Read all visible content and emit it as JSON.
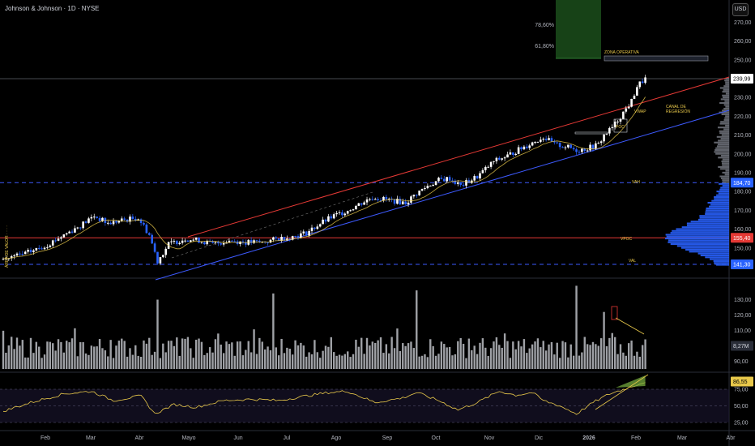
{
  "header": {
    "title": "Johnson & Johnson · 1D · NYSE",
    "currency_button": "USD"
  },
  "colors": {
    "up": "#ffffff",
    "down": "#2962ff",
    "resistance": "#e53935",
    "support": "#3d5afe",
    "level_line": "#3d5afe",
    "poc_line": "#e53935",
    "annotation": "#e8c84a",
    "volume_bar": "#b0b3b8",
    "profile": "#2962ff",
    "rsi_line": "#e8c84a",
    "rsi_fill": "#7cb342",
    "target_zone": "#1b4d1b"
  },
  "fib_labels": [
    {
      "text": "78,60%"
    },
    {
      "text": "61,80%"
    }
  ],
  "annotations": {
    "zona_operativa": "ZONA OPERATIVA",
    "canal_line1": "CANAL DE",
    "canal_line2": "REGRESIÓN",
    "vwap": "VWAP",
    "poc": "POC",
    "vah": "VAH",
    "vpoc": "VPOC",
    "val": "VAL",
    "area_valor": "ÁREA DE VALOR · · · ·"
  },
  "price_axis": {
    "ticks": [
      "270,00",
      "260,00",
      "250,00",
      "240,00",
      "230,00",
      "220,00",
      "210,00",
      "200,00",
      "190,00",
      "180,00",
      "170,00",
      "160,00",
      "150,00"
    ]
  },
  "price_badges": [
    {
      "text": "239,99",
      "kind": "last"
    },
    {
      "text": "184,70",
      "kind": "level"
    },
    {
      "text": "155,40",
      "kind": "poc"
    },
    {
      "text": "141,30",
      "kind": "level"
    }
  ],
  "volume_axis": {
    "ticks": [
      "130,00",
      "120,00",
      "110,00",
      "90,00"
    ],
    "badge": "8,27M"
  },
  "rsi_axis": {
    "ticks": [
      "75,00",
      "50,00",
      "25,00"
    ],
    "badge": "86,55"
  },
  "time_axis": {
    "labels": [
      "Feb",
      "Mar",
      "Abr",
      "Mayo",
      "Jun",
      "Jul",
      "Ago",
      "Sep",
      "Oct",
      "Nov",
      "Dic",
      "2026",
      "Feb",
      "Mar",
      "Abr"
    ]
  },
  "chart_data": {
    "type": "candlestick",
    "price_keyframes": [
      [
        0,
        144
      ],
      [
        8,
        147
      ],
      [
        15,
        151
      ],
      [
        22,
        157
      ],
      [
        28,
        162
      ],
      [
        33,
        167
      ],
      [
        38,
        163
      ],
      [
        44,
        165
      ],
      [
        49,
        166
      ],
      [
        53,
        157
      ],
      [
        56,
        143
      ],
      [
        60,
        152
      ],
      [
        66,
        155
      ],
      [
        71,
        154
      ],
      [
        76,
        152
      ],
      [
        82,
        154
      ],
      [
        88,
        153
      ],
      [
        94,
        153
      ],
      [
        100,
        155
      ],
      [
        105,
        156
      ],
      [
        110,
        158
      ],
      [
        115,
        163
      ],
      [
        120,
        167
      ],
      [
        125,
        170
      ],
      [
        130,
        174
      ],
      [
        134,
        177
      ],
      [
        138,
        176
      ],
      [
        142,
        175
      ],
      [
        146,
        174
      ],
      [
        150,
        179
      ],
      [
        154,
        183
      ],
      [
        158,
        186
      ],
      [
        162,
        187
      ],
      [
        166,
        183
      ],
      [
        172,
        188
      ],
      [
        178,
        196
      ],
      [
        183,
        199
      ],
      [
        188,
        203
      ],
      [
        192,
        206
      ],
      [
        196,
        209
      ],
      [
        200,
        205
      ],
      [
        204,
        204
      ],
      [
        208,
        202
      ],
      [
        212,
        203
      ],
      [
        216,
        205
      ],
      [
        218,
        210
      ],
      [
        221,
        214
      ],
      [
        224,
        220
      ],
      [
        228,
        228
      ],
      [
        230,
        236
      ],
      [
        233,
        240
      ]
    ],
    "volume_range": [
      85,
      135
    ],
    "volume_spikes": [
      [
        56,
        130
      ],
      [
        98,
        134
      ],
      [
        150,
        136
      ],
      [
        208,
        133
      ],
      [
        218,
        122
      ]
    ],
    "rsi_keyframes": [
      [
        0,
        42
      ],
      [
        10,
        55
      ],
      [
        22,
        68
      ],
      [
        32,
        72
      ],
      [
        40,
        58
      ],
      [
        50,
        65
      ],
      [
        55,
        38
      ],
      [
        62,
        52
      ],
      [
        70,
        48
      ],
      [
        80,
        58
      ],
      [
        90,
        60
      ],
      [
        100,
        58
      ],
      [
        110,
        65
      ],
      [
        118,
        70
      ],
      [
        125,
        72
      ],
      [
        135,
        55
      ],
      [
        145,
        62
      ],
      [
        150,
        70
      ],
      [
        158,
        58
      ],
      [
        165,
        44
      ],
      [
        172,
        55
      ],
      [
        180,
        72
      ],
      [
        186,
        66
      ],
      [
        192,
        70
      ],
      [
        196,
        58
      ],
      [
        202,
        50
      ],
      [
        208,
        38
      ],
      [
        214,
        55
      ],
      [
        220,
        68
      ],
      [
        226,
        76
      ],
      [
        230,
        82
      ],
      [
        233,
        86.55
      ]
    ],
    "levels": {
      "last": 239.99,
      "vah": 184.7,
      "vpoc": 155.4,
      "val": 141.3,
      "fib_618": 61.8,
      "fib_786": 78.6
    },
    "rsi_levels": [
      75,
      50,
      25
    ]
  }
}
